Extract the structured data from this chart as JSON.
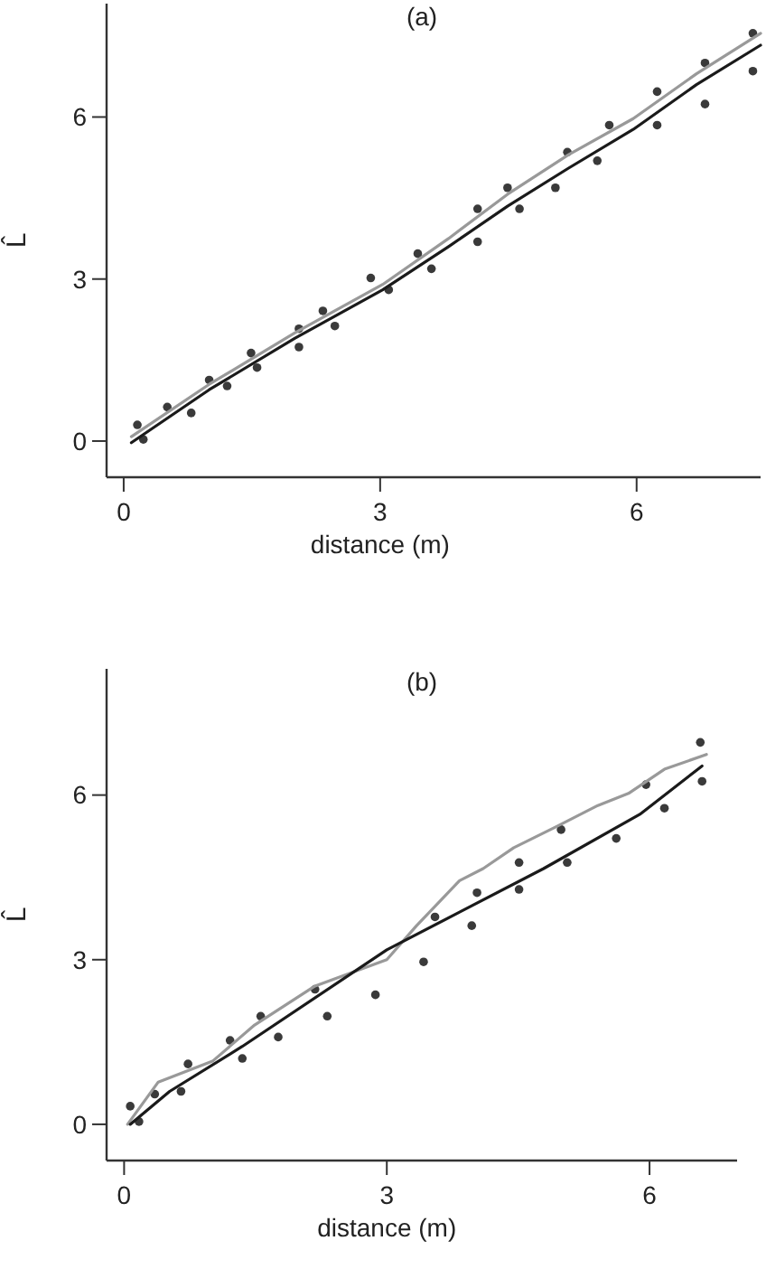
{
  "chart_data": [
    {
      "type": "scatter",
      "title": "(a)",
      "xlabel": "distance (m)",
      "ylabel": "L̂",
      "xlim": [
        -0.2,
        7.45
      ],
      "ylim": [
        -0.67,
        8.1
      ],
      "xticks": [
        0,
        3,
        6
      ],
      "yticks": [
        0,
        3,
        6
      ],
      "grid": false,
      "series": [
        {
          "marker": "circle",
          "color": "#3a3a3a",
          "x": [
            0.16,
            0.51,
            1.0,
            1.49,
            2.05,
            2.33,
            2.89,
            3.44,
            4.14,
            4.49,
            5.19,
            5.68,
            6.24,
            6.8,
            7.36
          ],
          "values": [
            0.3,
            0.63,
            1.13,
            1.63,
            2.08,
            2.41,
            3.02,
            3.47,
            4.3,
            4.69,
            5.35,
            5.85,
            6.47,
            7.0,
            7.55
          ]
        },
        {
          "marker": "circle",
          "color": "#3a3a3a",
          "x": [
            0.23,
            0.79,
            1.21,
            1.56,
            2.05,
            2.47,
            3.1,
            3.6,
            4.14,
            4.63,
            5.05,
            5.54,
            6.24,
            6.8,
            7.36
          ],
          "values": [
            0.03,
            0.52,
            1.02,
            1.36,
            1.74,
            2.13,
            2.8,
            3.19,
            3.69,
            4.3,
            4.69,
            5.19,
            5.85,
            6.24,
            6.85
          ]
        },
        {
          "type": "line",
          "line_style": "solid",
          "color": "#999999",
          "x": [
            0.09,
            1.0,
            2.0,
            3.03,
            3.8,
            4.49,
            5.2,
            5.96,
            6.7,
            7.45
          ],
          "values": [
            0.08,
            1.05,
            2.0,
            2.9,
            3.75,
            4.57,
            5.3,
            5.97,
            6.8,
            7.55
          ]
        },
        {
          "type": "line",
          "line_style": "solid",
          "color": "#1a1a1a",
          "x": [
            0.09,
            1.0,
            2.0,
            3.03,
            3.8,
            4.49,
            5.2,
            5.96,
            6.7,
            7.45
          ],
          "values": [
            -0.03,
            0.95,
            1.9,
            2.8,
            3.6,
            4.35,
            5.05,
            5.77,
            6.6,
            7.33
          ]
        }
      ]
    },
    {
      "type": "scatter",
      "title": "(b)",
      "xlabel": "distance (m)",
      "ylabel": "L̂",
      "xlim": [
        -0.2,
        7.0
      ],
      "ylim": [
        -0.66,
        8.3
      ],
      "xticks": [
        0,
        3,
        6
      ],
      "yticks": [
        0,
        3,
        6
      ],
      "grid": false,
      "series": [
        {
          "marker": "circle",
          "color": "#3a3a3a",
          "x": [
            0.07,
            0.35,
            0.73,
            1.21,
            1.56,
            2.18,
            3.55,
            4.03,
            4.51,
            4.99,
            5.96,
            6.58
          ],
          "values": [
            0.33,
            0.55,
            1.1,
            1.53,
            1.97,
            2.46,
            3.78,
            4.22,
            4.77,
            5.37,
            6.19,
            6.96
          ]
        },
        {
          "marker": "circle",
          "color": "#3a3a3a",
          "x": [
            0.17,
            0.65,
            1.35,
            1.76,
            2.32,
            2.87,
            3.42,
            3.97,
            4.51,
            5.06,
            5.62,
            6.17,
            6.6
          ],
          "values": [
            0.05,
            0.6,
            1.2,
            1.59,
            1.97,
            2.36,
            2.96,
            3.62,
            4.28,
            4.77,
            5.21,
            5.76,
            6.25
          ]
        },
        {
          "type": "line",
          "line_style": "solid",
          "color": "#999999",
          "x": [
            0.04,
            0.39,
            1.01,
            1.49,
            2.18,
            3.0,
            3.34,
            3.83,
            4.1,
            4.45,
            4.93,
            5.41,
            5.76,
            6.17,
            6.65
          ],
          "values": [
            0,
            0.77,
            1.15,
            1.81,
            2.52,
            3.0,
            3.62,
            4.44,
            4.66,
            5.04,
            5.42,
            5.81,
            6.03,
            6.47,
            6.74
          ]
        },
        {
          "type": "line",
          "line_style": "solid",
          "color": "#1a1a1a",
          "x": [
            0.07,
            0.52,
            1.35,
            3.0,
            4.79,
            5.89,
            6.6
          ],
          "values": [
            0,
            0.6,
            1.42,
            3.18,
            4.66,
            5.65,
            6.53
          ]
        }
      ]
    }
  ]
}
